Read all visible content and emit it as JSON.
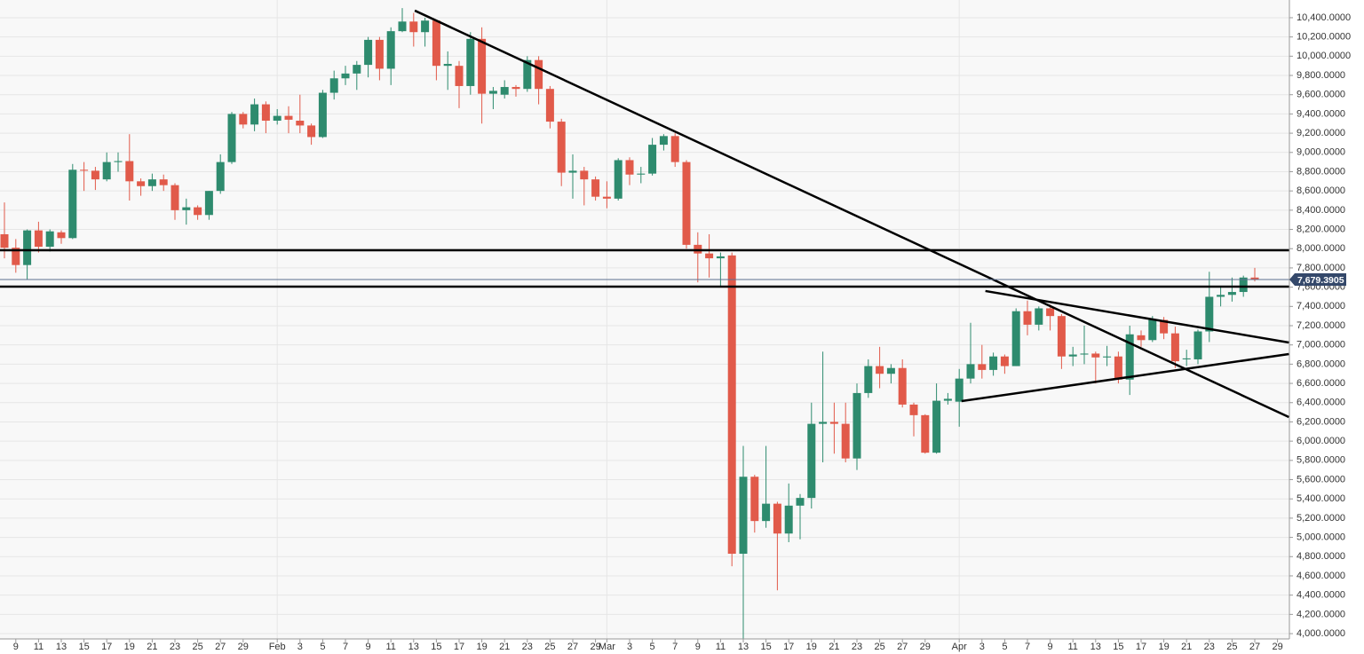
{
  "chart_data": {
    "type": "candlestick",
    "categories": [
      null,
      "9",
      null,
      "11",
      null,
      "13",
      null,
      "15",
      null,
      "17",
      null,
      "19",
      null,
      "21",
      null,
      "23",
      null,
      "25",
      null,
      "27",
      null,
      "29",
      null,
      null,
      "Feb",
      null,
      "3",
      null,
      "5",
      null,
      "7",
      null,
      "9",
      null,
      "11",
      null,
      "13",
      null,
      "15",
      null,
      "17",
      null,
      "19",
      null,
      "21",
      null,
      "23",
      null,
      "25",
      null,
      "27",
      null,
      "29",
      "Mar",
      null,
      "3",
      null,
      "5",
      null,
      "7",
      null,
      "9",
      null,
      "11",
      null,
      "13",
      null,
      "15",
      null,
      "17",
      null,
      "19",
      null,
      "21",
      null,
      "23",
      null,
      "25",
      null,
      "27",
      null,
      "29",
      null,
      null,
      "Apr",
      null,
      "3",
      null,
      "5",
      null,
      "7",
      null,
      "9",
      null,
      "11",
      null,
      "13",
      null,
      "15",
      null,
      "17",
      null,
      "19",
      null,
      "21",
      null,
      "23",
      null,
      "25",
      null,
      "27",
      null,
      "29"
    ],
    "open": [
      8150,
      8010,
      7830,
      8190,
      8020,
      8170,
      8110,
      8820,
      8810,
      8720,
      8900,
      8910,
      8700,
      8650,
      8720,
      8660,
      8400,
      8430,
      8350,
      8600,
      8900,
      9400,
      9290,
      9500,
      9330,
      9380,
      9330,
      9280,
      9160,
      9620,
      9770,
      9820,
      9910,
      10170,
      9870,
      10260,
      10360,
      10250,
      10370,
      9900,
      9900,
      9690,
      10180,
      9610,
      9600,
      9680,
      9660,
      9960,
      9660,
      9320,
      8790,
      8810,
      8720,
      8540,
      8520,
      8920,
      8770,
      8780,
      9080,
      9170,
      8900,
      8040,
      7950,
      7900,
      7930,
      4830,
      5630,
      5170,
      5350,
      5040,
      5330,
      5410,
      6180,
      6200,
      6180,
      5820,
      6500,
      6780,
      6700,
      6760,
      6380,
      6270,
      5880,
      6420,
      6410,
      6650,
      6800,
      6740,
      6880,
      6780,
      7350,
      7210,
      7380,
      7300,
      6880,
      6900,
      6910,
      6870,
      6880,
      6640,
      7100,
      7050,
      7260,
      7120,
      6850,
      6850,
      7140,
      7500,
      7520,
      7550,
      7700,
      null,
      null
    ],
    "high": [
      8480,
      8100,
      8200,
      8280,
      8200,
      8190,
      8880,
      8900,
      8850,
      9000,
      9000,
      9190,
      8730,
      8780,
      8770,
      8680,
      8520,
      8450,
      8600,
      8980,
      9420,
      9420,
      9560,
      9530,
      9450,
      9480,
      9600,
      9300,
      9650,
      9850,
      9900,
      9950,
      10200,
      10200,
      10300,
      10500,
      10450,
      10400,
      10380,
      10050,
      9950,
      10250,
      10300,
      9680,
      9750,
      9700,
      10000,
      10000,
      9690,
      9350,
      8980,
      8850,
      8750,
      8700,
      8940,
      8950,
      8850,
      9150,
      9190,
      9200,
      8920,
      8170,
      8150,
      7960,
      7960,
      5950,
      5650,
      5950,
      5370,
      5560,
      5450,
      6400,
      6930,
      6400,
      6400,
      6600,
      6850,
      6980,
      6800,
      6850,
      6400,
      6280,
      6600,
      6500,
      6750,
      7230,
      7000,
      6920,
      6900,
      7380,
      7460,
      7400,
      7420,
      7320,
      6980,
      7200,
      6930,
      6990,
      6930,
      7200,
      7150,
      7300,
      7290,
      7190,
      6950,
      7160,
      7760,
      7600,
      7700,
      7720,
      7800,
      null,
      null
    ],
    "low": [
      7900,
      7750,
      7680,
      7960,
      7970,
      8050,
      8100,
      8600,
      8610,
      8700,
      8800,
      8500,
      8550,
      8600,
      8600,
      8300,
      8250,
      8300,
      8300,
      8570,
      8880,
      9250,
      9220,
      9200,
      9290,
      9200,
      9200,
      9080,
      9150,
      9550,
      9700,
      9650,
      9780,
      9750,
      9700,
      10250,
      10100,
      10100,
      9750,
      9650,
      9460,
      9600,
      9300,
      9450,
      9560,
      9580,
      9630,
      9500,
      9250,
      8650,
      8520,
      8450,
      8500,
      8420,
      8500,
      8660,
      8680,
      8760,
      9020,
      8850,
      8000,
      7650,
      7700,
      7600,
      4700,
      3850,
      5050,
      5100,
      4450,
      4950,
      4980,
      5300,
      5780,
      5870,
      5780,
      5700,
      6450,
      6550,
      6600,
      6350,
      6050,
      5870,
      5870,
      6380,
      6150,
      6600,
      6650,
      6680,
      6700,
      6780,
      7100,
      7150,
      7150,
      6750,
      6780,
      6800,
      6600,
      6780,
      6600,
      6480,
      6980,
      7030,
      7060,
      6760,
      6780,
      6800,
      7030,
      7400,
      7450,
      7500,
      7660,
      null,
      null
    ],
    "close": [
      8010,
      7830,
      8190,
      8020,
      8180,
      8110,
      8820,
      8810,
      8720,
      8900,
      8910,
      8700,
      8650,
      8720,
      8660,
      8400,
      8430,
      8350,
      8600,
      8900,
      9400,
      9290,
      9500,
      9330,
      9380,
      9340,
      9280,
      9160,
      9620,
      9770,
      9820,
      9910,
      10170,
      9870,
      10260,
      10360,
      10250,
      10370,
      9900,
      9920,
      9690,
      10180,
      9610,
      9640,
      9680,
      9660,
      9960,
      9660,
      9320,
      8790,
      8810,
      8720,
      8540,
      8520,
      8920,
      8770,
      8780,
      9080,
      9170,
      8900,
      8040,
      7950,
      7900,
      7920,
      4830,
      5630,
      5170,
      5350,
      5040,
      5330,
      5410,
      6180,
      6200,
      6180,
      5820,
      6500,
      6780,
      6700,
      6760,
      6380,
      6270,
      5880,
      6420,
      6440,
      6650,
      6800,
      6740,
      6880,
      6780,
      7350,
      7210,
      7380,
      7300,
      6880,
      6900,
      6910,
      6870,
      6880,
      6640,
      7110,
      7050,
      7260,
      7120,
      6830,
      6860,
      7140,
      7500,
      7520,
      7550,
      7700,
      7680,
      null,
      null
    ],
    "up_color": "#2e8b6e",
    "down_color": "#e15a4a",
    "ylim": [
      3945,
      10584
    ],
    "yticks": [
      {
        "value": 4000,
        "label": "4,000.0000"
      },
      {
        "value": 4200,
        "label": "4,200.0000"
      },
      {
        "value": 4400,
        "label": "4,400.0000"
      },
      {
        "value": 4600,
        "label": "4,600.0000"
      },
      {
        "value": 4800,
        "label": "4,800.0000"
      },
      {
        "value": 5000,
        "label": "5,000.0000"
      },
      {
        "value": 5200,
        "label": "5,200.0000"
      },
      {
        "value": 5400,
        "label": "5,400.0000"
      },
      {
        "value": 5600,
        "label": "5,600.0000"
      },
      {
        "value": 5800,
        "label": "5,800.0000"
      },
      {
        "value": 6000,
        "label": "6,000.0000"
      },
      {
        "value": 6200,
        "label": "6,200.0000"
      },
      {
        "value": 6400,
        "label": "6,400.0000"
      },
      {
        "value": 6600,
        "label": "6,600.0000"
      },
      {
        "value": 6800,
        "label": "6,800.0000"
      },
      {
        "value": 7000,
        "label": "7,000.0000"
      },
      {
        "value": 7200,
        "label": "7,200.0000"
      },
      {
        "value": 7400,
        "label": "7,400.0000"
      },
      {
        "value": 7600,
        "label": "7,600.0000"
      },
      {
        "value": 7800,
        "label": "7,800.0000"
      },
      {
        "value": 8000,
        "label": "8,000.0000"
      },
      {
        "value": 8200,
        "label": "8,200.0000"
      },
      {
        "value": 8400,
        "label": "8,400.0000"
      },
      {
        "value": 8600,
        "label": "8,600.0000"
      },
      {
        "value": 8800,
        "label": "8,800.0000"
      },
      {
        "value": 9000,
        "label": "9,000.0000"
      },
      {
        "value": 9200,
        "label": "9,200.0000"
      },
      {
        "value": 9400,
        "label": "9,400.0000"
      },
      {
        "value": 9600,
        "label": "9,600.0000"
      },
      {
        "value": 9800,
        "label": "9,800.0000"
      },
      {
        "value": 10000,
        "label": "10,000.0000"
      },
      {
        "value": 10200,
        "label": "10,200.0000"
      },
      {
        "value": 10400,
        "label": "10,400.0000"
      }
    ],
    "grid": true,
    "last_price": {
      "value": 7679.3905,
      "label": "7,679.3905"
    },
    "levels": [
      7984,
      7606
    ],
    "trendlines": [
      {
        "x": [
          36.1,
          113
        ],
        "y": [
          10474,
          6250
        ]
      },
      {
        "x": [
          86.3,
          113
        ],
        "y": [
          7560,
          7025
        ]
      },
      {
        "x": [
          84.2,
          113
        ],
        "y": [
          6416,
          6905
        ]
      }
    ]
  }
}
